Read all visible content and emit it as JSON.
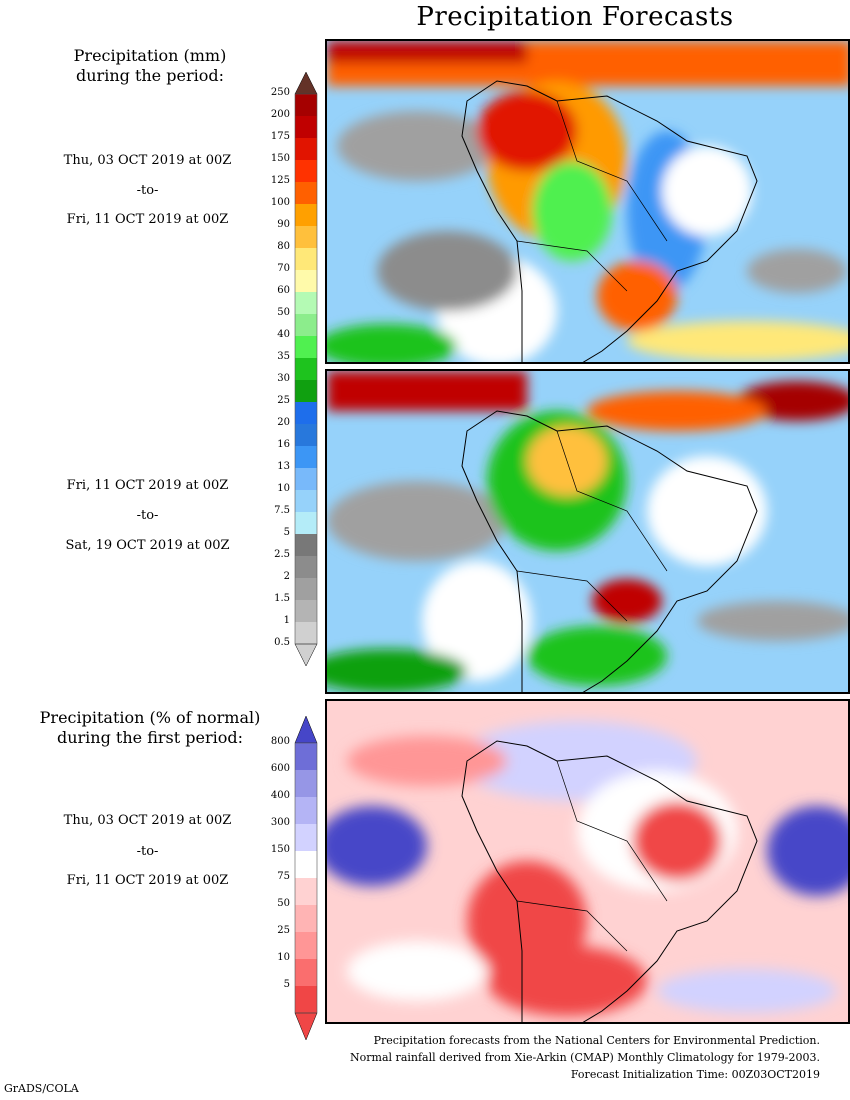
{
  "title": "Precipitation Forecasts",
  "amount_block": {
    "heading_line1": "Precipitation (mm)",
    "heading_line2": "during the period:",
    "period1": {
      "start": "Thu, 03 OCT 2019 at 00Z",
      "sep": "-to-",
      "end": "Fri, 11 OCT 2019 at 00Z"
    },
    "period2": {
      "start": "Fri, 11 OCT 2019 at 00Z",
      "sep": "-to-",
      "end": "Sat, 19 OCT 2019 at 00Z"
    },
    "scale": [
      "250",
      "200",
      "175",
      "150",
      "125",
      "100",
      "90",
      "80",
      "70",
      "60",
      "50",
      "40",
      "35",
      "30",
      "25",
      "20",
      "16",
      "13",
      "10",
      "7.5",
      "5",
      "2.5",
      "2",
      "1.5",
      "1",
      "0.5"
    ],
    "colors": [
      "#d0d0d0",
      "#b4b4b4",
      "#a0a0a0",
      "#8c8c8c",
      "#787878",
      "#b4ecf8",
      "#96d2fa",
      "#78b9fa",
      "#3c96f5",
      "#2878dc",
      "#1e6eeb",
      "#10a010",
      "#1ec31e",
      "#50f050",
      "#8ced8c",
      "#b4fab4",
      "#fffaaa",
      "#ffe878",
      "#ffc03c",
      "#ffa000",
      "#ff6000",
      "#ff3200",
      "#e11400",
      "#c00000",
      "#a50000",
      "#870000"
    ],
    "top_arrow_color": "#643228"
  },
  "anomaly_block": {
    "heading_line1": "Precipitation (% of normal)",
    "heading_line2": "during the first period:",
    "period": {
      "start": "Thu, 03 OCT 2019 at 00Z",
      "sep": "-to-",
      "end": "Fri, 11 OCT 2019 at 00Z"
    },
    "scale": [
      "800",
      "600",
      "400",
      "300",
      "150",
      "75",
      "50",
      "25",
      "10",
      "5"
    ],
    "colors": [
      "#f04646",
      "#fa6e6e",
      "#ff9696",
      "#ffb4b4",
      "#ffd2d2",
      "#ffffff",
      "#d2d2ff",
      "#b4b4f5",
      "#9696e6",
      "#6e6ed7",
      "#4646c8"
    ]
  },
  "footer": {
    "line1": "Precipitation forecasts from the National Centers for Environmental Prediction.",
    "line2": "Normal rainfall derived from Xie-Arkin (CMAP) Monthly Climatology for 1979-2003.",
    "line3": "Forecast Initialization Time: 00Z03OCT2019"
  },
  "credit": "GrADS/COLA"
}
